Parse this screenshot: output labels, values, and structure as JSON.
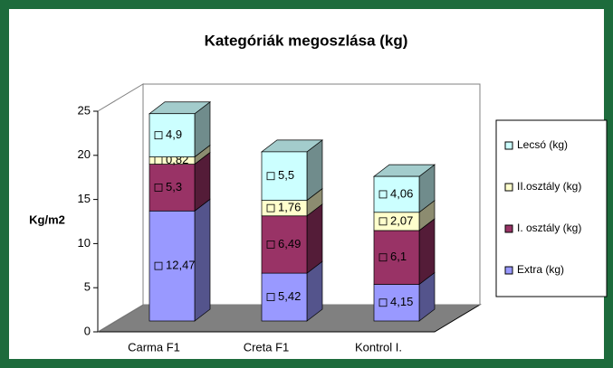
{
  "chart_data": {
    "type": "bar3d_stacked",
    "title": "Kategóriák megoszlása (kg)",
    "ylabel": "Kg/m2",
    "categories": [
      "Carma F1",
      "Creta F1",
      "Kontrol  I."
    ],
    "series": [
      {
        "name": "Extra (kg)",
        "color": "#9999ff",
        "values": [
          12.47,
          5.42,
          4.15
        ],
        "value_labels": [
          "12,47",
          "5,42",
          "4,15"
        ]
      },
      {
        "name": "I. osztály (kg)",
        "color": "#993366",
        "values": [
          5.3,
          6.49,
          6.1
        ],
        "value_labels": [
          "5,3",
          "6,49",
          "6,1"
        ]
      },
      {
        "name": "II.osztály (kg)",
        "color": "#ffffcc",
        "values": [
          0.82,
          1.76,
          2.07
        ],
        "value_labels": [
          "0,82",
          "1,76",
          "2,07"
        ]
      },
      {
        "name": "Lecsó (kg)",
        "color": "#ccffff",
        "values": [
          4.9,
          5.5,
          4.06
        ],
        "value_labels": [
          "4,9",
          "5,5",
          "4,06"
        ]
      }
    ],
    "ylim": [
      0,
      25
    ],
    "yticks": [
      0,
      5,
      10,
      15,
      20,
      25
    ],
    "legend": "right"
  }
}
